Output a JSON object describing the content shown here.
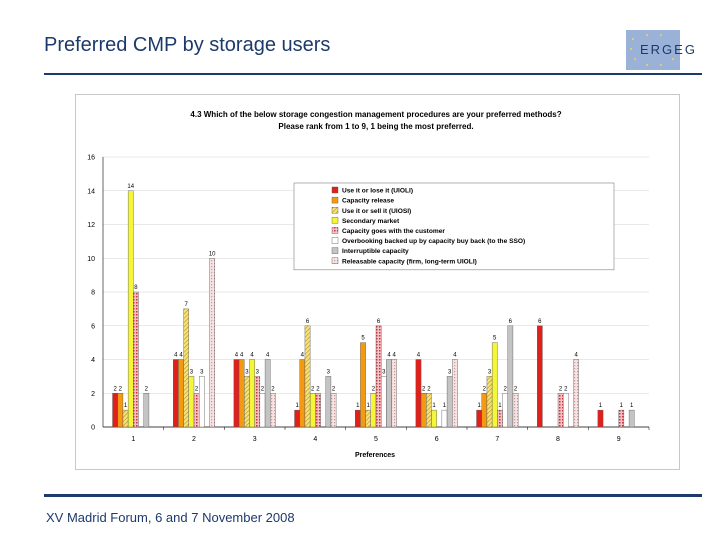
{
  "slide": {
    "title": "Preferred CMP by storage users",
    "logo_text": "ERGEG",
    "footer": "XV Madrid Forum, 6 and 7 November 2008"
  },
  "colors": {
    "title": "#1c3a6b",
    "rule": "#1c3a6b",
    "logo_bg": "#9ab1d8",
    "logo_star": "#f2d24b"
  },
  "chart_data": {
    "type": "bar",
    "title": "4.3 Which of the below storage congestion management procedures are your preferred methods?",
    "subtitle": "Please rank from 1 to 9, 1 being the most preferred.",
    "xlabel": "Preferences",
    "ylabel": "",
    "categories": [
      "1",
      "2",
      "3",
      "4",
      "5",
      "6",
      "7",
      "8",
      "9"
    ],
    "ylim": [
      0,
      16
    ],
    "yticks": [
      0,
      2,
      4,
      6,
      8,
      10,
      12,
      14,
      16
    ],
    "grid": true,
    "legend_position": "upper-right",
    "series": [
      {
        "name": "Use it or lose it (UIOLI)",
        "color": "#e0211b",
        "pattern": "solid",
        "values": [
          2,
          4,
          4,
          1,
          1,
          4,
          1,
          6,
          1
        ]
      },
      {
        "name": "Capacity release",
        "color": "#f39a12",
        "pattern": "solid",
        "values": [
          2,
          4,
          4,
          4,
          5,
          2,
          2,
          0,
          0
        ]
      },
      {
        "name": "Use it or sell it (UIOSI)",
        "color": "#f7e37a",
        "pattern": "diagonal",
        "values": [
          1,
          7,
          3,
          6,
          1,
          2,
          3,
          0,
          0
        ]
      },
      {
        "name": "Secondary market",
        "color": "#f5f53a",
        "pattern": "solid",
        "values": [
          14,
          3,
          4,
          2,
          2,
          1,
          5,
          0,
          0
        ]
      },
      {
        "name": "Capacity goes with the customer",
        "color": "#d54b53",
        "pattern": "dots",
        "values": [
          8,
          2,
          3,
          2,
          6,
          0,
          1,
          2,
          1
        ]
      },
      {
        "name": "Overbooking backed up by capacity buy back (to the SSO)",
        "color": "#ffffff",
        "pattern": "outline",
        "values": [
          0,
          3,
          2,
          0,
          3,
          1,
          2,
          2,
          0
        ]
      },
      {
        "name": "Interruptible capacity",
        "color": "#c4c4c4",
        "pattern": "solid",
        "values": [
          2,
          0,
          4,
          3,
          4,
          3,
          6,
          0,
          1
        ]
      },
      {
        "name": "Releasable capacity (firm, long-term UIOLI)",
        "color": "#ecc9c9",
        "pattern": "dots",
        "values": [
          0,
          10,
          2,
          2,
          4,
          4,
          2,
          4,
          0
        ]
      }
    ]
  }
}
